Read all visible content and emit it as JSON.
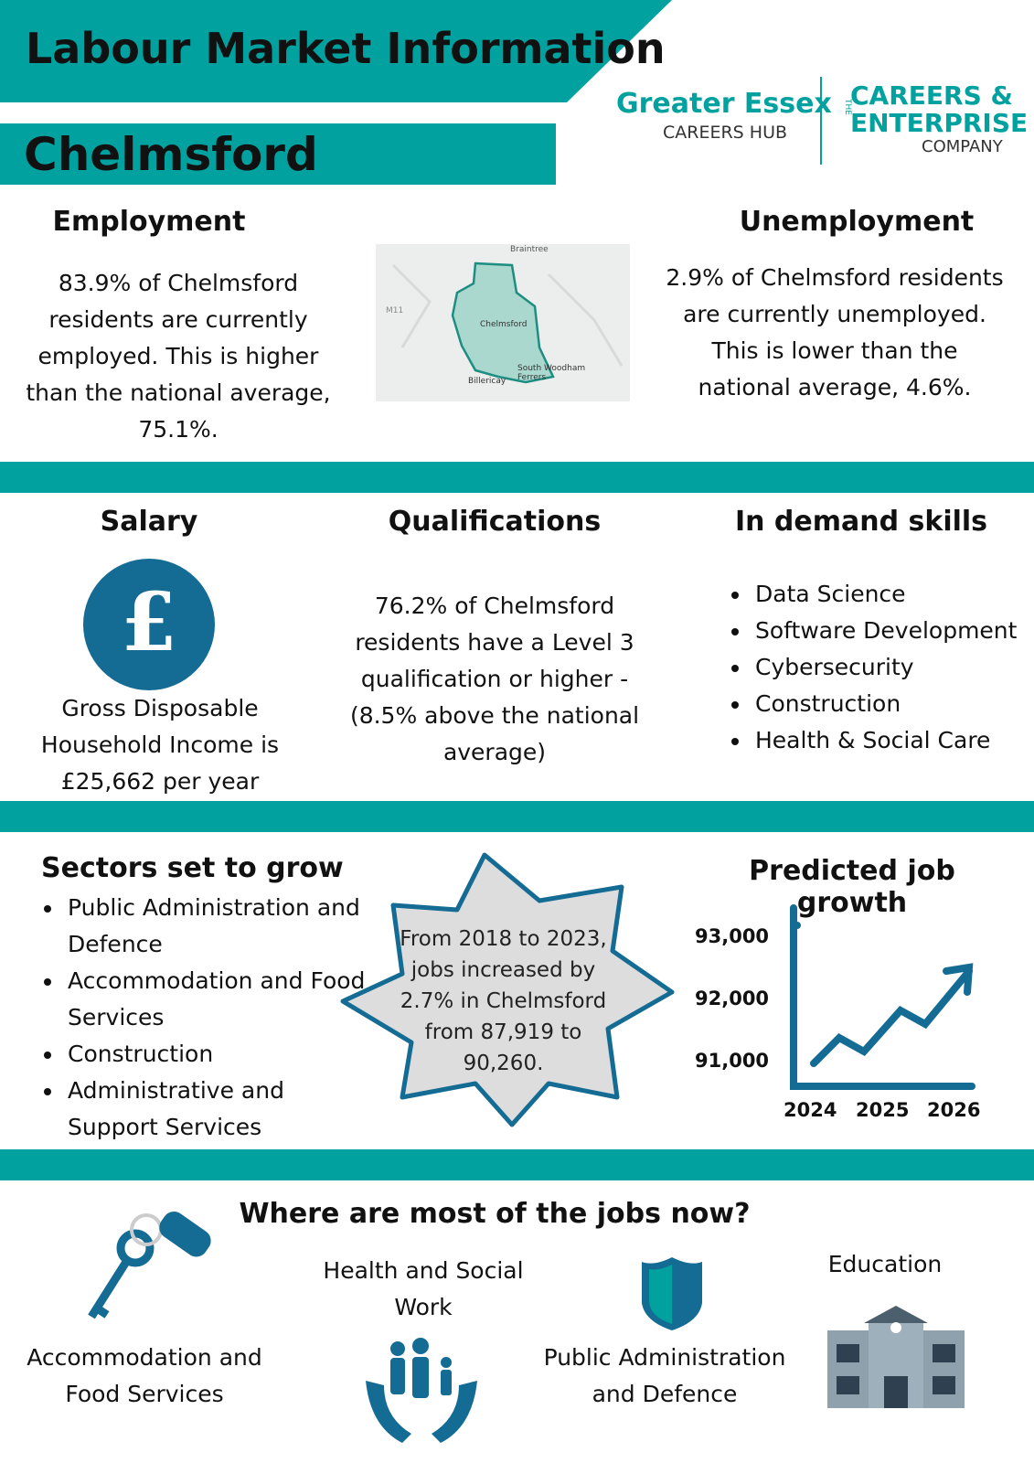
{
  "header": {
    "title": "Labour Market Information",
    "location": "Chelmsford",
    "hub_name": "Greater Essex",
    "hub_sub": "CAREERS HUB",
    "cec_the": "THE",
    "cec_line1": "CAREERS &",
    "cec_line2": "ENTERPRISE",
    "cec_line3": "COMPANY"
  },
  "employment": {
    "heading": "Employment",
    "text": "83.9% of Chelmsford residents are currently employed. This is higher than the national average, 75.1%."
  },
  "map": {
    "labels": [
      "Braintree",
      "Chelmsford",
      "M11",
      "South Woodham Ferrers",
      "Billericay"
    ]
  },
  "unemployment": {
    "heading": "Unemployment",
    "text": "2.9% of Chelmsford residents are currently unemployed. This is lower than the national average, 4.6%."
  },
  "salary": {
    "heading": "Salary",
    "symbol": "£",
    "text": "Gross Disposable Household Income is £25,662 per year"
  },
  "qualifications": {
    "heading": "Qualifications",
    "text": "76.2% of Chelmsford residents have a Level 3 qualification or higher - (8.5% above the national average)"
  },
  "skills": {
    "heading": "In demand skills",
    "items": [
      "Data Science",
      "Software Development",
      "Cybersecurity",
      "Construction",
      "Health & Social Care"
    ]
  },
  "sectors": {
    "heading": "Sectors set to grow",
    "items": [
      "Public Administration and Defence",
      "Accommodation and Food Services",
      "Construction",
      "Administrative and Support Services"
    ]
  },
  "burst": {
    "text": "From 2018 to 2023, jobs increased by 2.7% in Chelmsford from 87,919 to 90,260."
  },
  "growth": {
    "heading": "Predicted job growth",
    "y_labels": [
      "93,000",
      "92,000",
      "91,000"
    ],
    "x_labels": [
      "2024",
      "2025",
      "2026"
    ]
  },
  "jobs": {
    "heading": "Where are most of the jobs now?",
    "items": [
      "Accommodation and Food Services",
      "Health and Social Work",
      "Public Administration and Defence",
      "Education"
    ]
  }
}
